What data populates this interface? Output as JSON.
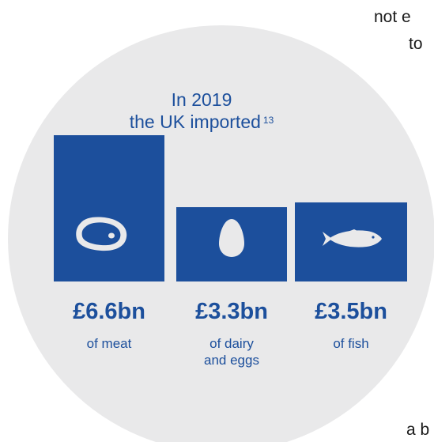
{
  "heading": {
    "line1": "In 2019",
    "line2": "the UK imported",
    "footnote": "13"
  },
  "fragments": {
    "top_line1": "not e",
    "top_line2": "to",
    "bottom": "a b"
  },
  "colors": {
    "brand_blue": "#1c4f9c",
    "circle_bg": "#e9e9ea",
    "icon_fill": "#e9e9ea"
  },
  "imports": [
    {
      "icon": "steak-icon",
      "value": "£6.6bn",
      "caption_line1": "of meat",
      "caption_line2": ""
    },
    {
      "icon": "egg-icon",
      "value": "£3.3bn",
      "caption_line1": "of dairy",
      "caption_line2": "and eggs"
    },
    {
      "icon": "fish-icon",
      "value": "£3.5bn",
      "caption_line1": "of fish",
      "caption_line2": ""
    }
  ]
}
